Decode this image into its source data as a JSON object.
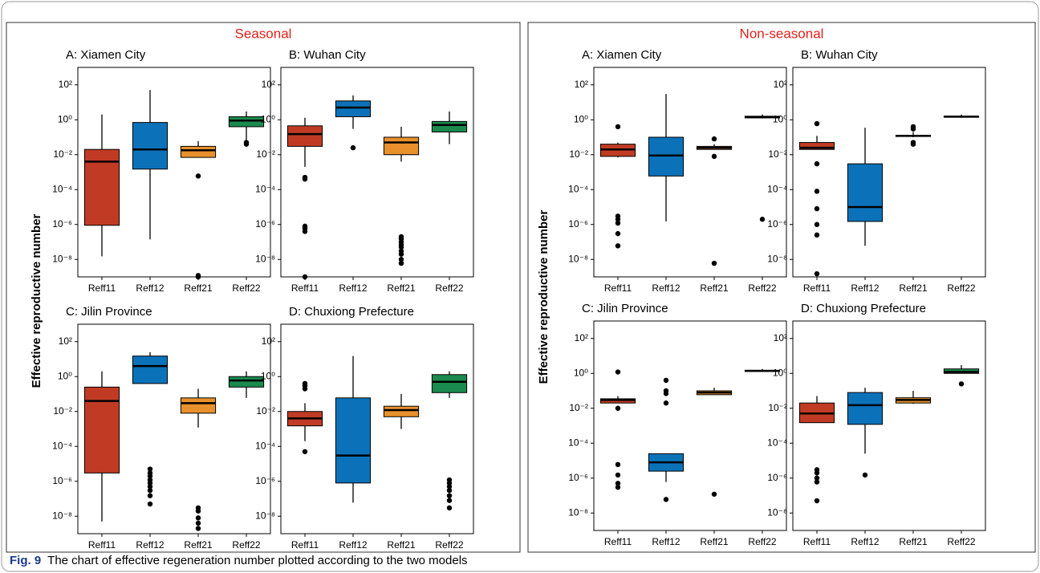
{
  "figure": {
    "groups": [
      {
        "title": "Seasonal",
        "ylabel": "Effective reproductive number"
      },
      {
        "title": "Non-seasonal",
        "ylabel": "Effective reproductive number"
      }
    ],
    "caption_label": "Fig. 9",
    "caption": "The chart of effective regeneration number plotted according to the two models"
  },
  "chart_data": [
    {
      "type": "box",
      "title": "A: Xiamen City",
      "log": true,
      "ylim": [
        1e-09,
        1000
      ],
      "yticks": [
        {
          "value": 1e-08,
          "label": "10⁻⁸"
        },
        {
          "value": 1e-06,
          "label": "10⁻⁶"
        },
        {
          "value": 0.0001,
          "label": "10⁻⁴"
        },
        {
          "value": 0.01,
          "label": "10⁻²"
        },
        {
          "value": 1,
          "label": "10⁰"
        },
        {
          "value": 100,
          "label": "10²"
        }
      ],
      "categories": [
        "Reff11",
        "Reff12",
        "Reff21",
        "Reff22"
      ],
      "colors": [
        "#c13b24",
        "#0b72b9",
        "#e8912c",
        "#1b8a4f"
      ],
      "boxes": [
        {
          "whislo": 1.5e-08,
          "q1": 9e-07,
          "med": 0.004,
          "q3": 0.02,
          "whishi": 2,
          "fliers": []
        },
        {
          "whislo": 1.4e-07,
          "q1": 0.0015,
          "med": 0.02,
          "q3": 0.7,
          "whishi": 50,
          "fliers": []
        },
        {
          "whislo": 0.007,
          "q1": 0.007,
          "med": 0.018,
          "q3": 0.03,
          "whishi": 0.06,
          "fliers": [
            0.0006,
            1.2e-09,
            1e-09
          ]
        },
        {
          "whislo": 0.06,
          "q1": 0.4,
          "med": 0.9,
          "q3": 1.5,
          "whishi": 3,
          "fliers": [
            0.05,
            0.04
          ]
        }
      ]
    },
    {
      "type": "box",
      "title": "B: Wuhan City",
      "log": true,
      "ylim": [
        1e-09,
        1000
      ],
      "yticks": [
        {
          "value": 1e-08,
          "label": "10⁻⁸"
        },
        {
          "value": 1e-06,
          "label": "10⁻⁶"
        },
        {
          "value": 0.0001,
          "label": "10⁻⁴"
        },
        {
          "value": 0.01,
          "label": "10⁻²"
        },
        {
          "value": 1,
          "label": "10⁰"
        },
        {
          "value": 100,
          "label": "10²"
        }
      ],
      "categories": [
        "Reff11",
        "Reff12",
        "Reff21",
        "Reff22"
      ],
      "colors": [
        "#c13b24",
        "#0b72b9",
        "#e8912c",
        "#1b8a4f"
      ],
      "boxes": [
        {
          "whislo": 0.002,
          "q1": 0.03,
          "med": 0.15,
          "q3": 0.45,
          "whishi": 1.3,
          "fliers": [
            0.0005,
            0.0004,
            8e-07,
            6e-07,
            4e-07,
            1e-09
          ]
        },
        {
          "whislo": 0.3,
          "q1": 1.5,
          "med": 5,
          "q3": 12,
          "whishi": 25,
          "fliers": [
            0.025
          ]
        },
        {
          "whislo": 0.004,
          "q1": 0.01,
          "med": 0.05,
          "q3": 0.1,
          "whishi": 0.4,
          "fliers": [
            2e-07,
            1.5e-07,
            1e-07,
            7e-08,
            5e-08,
            3e-08,
            2e-08,
            1e-08,
            6e-09
          ]
        },
        {
          "whislo": 0.04,
          "q1": 0.2,
          "med": 0.5,
          "q3": 0.8,
          "whishi": 3,
          "fliers": []
        }
      ]
    },
    {
      "type": "box",
      "title": "C: Jilin Province",
      "log": true,
      "ylim": [
        1e-09,
        1000
      ],
      "yticks": [
        {
          "value": 1e-08,
          "label": "10⁻⁸"
        },
        {
          "value": 1e-06,
          "label": "10⁻⁶"
        },
        {
          "value": 0.0001,
          "label": "10⁻⁴"
        },
        {
          "value": 0.01,
          "label": "10⁻²"
        },
        {
          "value": 1,
          "label": "10⁰"
        },
        {
          "value": 100,
          "label": "10²"
        }
      ],
      "categories": [
        "Reff11",
        "Reff12",
        "Reff21",
        "Reff22"
      ],
      "colors": [
        "#c13b24",
        "#0b72b9",
        "#e8912c",
        "#1b8a4f"
      ],
      "boxes": [
        {
          "whislo": 5e-09,
          "q1": 3e-06,
          "med": 0.04,
          "q3": 0.25,
          "whishi": 2,
          "fliers": []
        },
        {
          "whislo": 0.4,
          "q1": 0.4,
          "med": 4,
          "q3": 15,
          "whishi": 25,
          "fliers": [
            5e-06,
            3e-06,
            2e-06,
            1.2e-06,
            8e-07,
            5e-07,
            3e-07,
            1.5e-07,
            5e-08
          ]
        },
        {
          "whislo": 0.0012,
          "q1": 0.008,
          "med": 0.03,
          "q3": 0.06,
          "whishi": 0.2,
          "fliers": [
            3e-08,
            2e-08,
            8e-09,
            4e-09,
            2e-09
          ]
        },
        {
          "whislo": 0.06,
          "q1": 0.25,
          "med": 0.6,
          "q3": 1,
          "whishi": 2,
          "fliers": []
        }
      ]
    },
    {
      "type": "box",
      "title": "D: Chuxiong Prefecture",
      "log": true,
      "ylim": [
        1e-09,
        1000
      ],
      "yticks": [
        {
          "value": 1e-08,
          "label": "10⁻⁸"
        },
        {
          "value": 1e-06,
          "label": "10⁻⁶"
        },
        {
          "value": 0.0001,
          "label": "10⁻⁴"
        },
        {
          "value": 0.01,
          "label": "10⁻²"
        },
        {
          "value": 1,
          "label": "10⁰"
        },
        {
          "value": 100,
          "label": "10²"
        }
      ],
      "categories": [
        "Reff11",
        "Reff12",
        "Reff21",
        "Reff22"
      ],
      "colors": [
        "#c13b24",
        "#0b72b9",
        "#e8912c",
        "#1b8a4f"
      ],
      "boxes": [
        {
          "whislo": 0.0002,
          "q1": 0.0015,
          "med": 0.004,
          "q3": 0.01,
          "whishi": 0.03,
          "fliers": [
            0.4,
            0.3,
            0.2,
            5e-05
          ]
        },
        {
          "whislo": 6e-08,
          "q1": 8e-07,
          "med": 3e-05,
          "q3": 0.06,
          "whishi": 15,
          "fliers": []
        },
        {
          "whislo": 0.001,
          "q1": 0.005,
          "med": 0.012,
          "q3": 0.02,
          "whishi": 0.1,
          "fliers": []
        },
        {
          "whislo": 0.06,
          "q1": 0.12,
          "med": 0.5,
          "q3": 1.3,
          "whishi": 2,
          "fliers": [
            1.2e-06,
            8e-07,
            5e-07,
            3e-07,
            1.5e-07,
            8e-08,
            3e-08
          ]
        }
      ]
    },
    {
      "type": "box",
      "title": "A: Xiamen City",
      "log": true,
      "ylim": [
        1e-09,
        1000
      ],
      "yticks": [
        {
          "value": 1e-08,
          "label": "10⁻⁸"
        },
        {
          "value": 1e-06,
          "label": "10⁻⁶"
        },
        {
          "value": 0.0001,
          "label": "10⁻⁴"
        },
        {
          "value": 0.01,
          "label": "10⁻²"
        },
        {
          "value": 1,
          "label": "10⁰"
        },
        {
          "value": 100,
          "label": "10²"
        }
      ],
      "categories": [
        "Reff11",
        "Reff12",
        "Reff21",
        "Reff22"
      ],
      "colors": [
        "#c13b24",
        "#0b72b9",
        "#e8912c",
        "#1b8a4f"
      ],
      "boxes": [
        {
          "whislo": 0.007,
          "q1": 0.008,
          "med": 0.02,
          "q3": 0.04,
          "whishi": 0.05,
          "fliers": [
            0.4,
            3e-06,
            2e-06,
            1.2e-06,
            3e-07,
            6e-08
          ]
        },
        {
          "whislo": 1.5e-06,
          "q1": 0.0006,
          "med": 0.009,
          "q3": 0.1,
          "whishi": 30,
          "fliers": []
        },
        {
          "whislo": 0.02,
          "q1": 0.02,
          "med": 0.025,
          "q3": 0.03,
          "whishi": 0.04,
          "fliers": [
            0.08,
            0.008,
            6e-09
          ]
        },
        {
          "whislo": 1.2,
          "q1": 1.3,
          "med": 1.4,
          "q3": 1.6,
          "whishi": 2,
          "fliers": [
            2e-06
          ]
        }
      ]
    },
    {
      "type": "box",
      "title": "B: Wuhan City",
      "log": true,
      "ylim": [
        1e-09,
        1000
      ],
      "yticks": [
        {
          "value": 1e-08,
          "label": "10⁻⁸"
        },
        {
          "value": 1e-06,
          "label": "10⁻⁶"
        },
        {
          "value": 0.0001,
          "label": "10⁻⁴"
        },
        {
          "value": 0.01,
          "label": "10⁻²"
        },
        {
          "value": 1,
          "label": "10⁰"
        },
        {
          "value": 100,
          "label": "10²"
        }
      ],
      "categories": [
        "Reff11",
        "Reff12",
        "Reff21",
        "Reff22"
      ],
      "colors": [
        "#c13b24",
        "#0b72b9",
        "#e8912c",
        "#1b8a4f"
      ],
      "boxes": [
        {
          "whislo": 0.02,
          "q1": 0.02,
          "med": 0.025,
          "q3": 0.05,
          "whishi": 0.12,
          "fliers": [
            0.6,
            0.003,
            8e-05,
            8e-06,
            1e-06,
            2.5e-07,
            1.5e-09
          ]
        },
        {
          "whislo": 6e-08,
          "q1": 1.5e-06,
          "med": 1e-05,
          "q3": 0.003,
          "whishi": 0.35,
          "fliers": []
        },
        {
          "whislo": 0.1,
          "q1": 0.11,
          "med": 0.12,
          "q3": 0.13,
          "whishi": 0.2,
          "fliers": [
            0.4,
            0.3,
            0.05,
            0.04
          ]
        },
        {
          "whislo": 1.3,
          "q1": 1.4,
          "med": 1.5,
          "q3": 1.6,
          "whishi": 2,
          "fliers": []
        }
      ]
    },
    {
      "type": "box",
      "title": "C: Jilin Province",
      "log": true,
      "ylim": [
        1e-09,
        1000
      ],
      "yticks": [
        {
          "value": 1e-08,
          "label": "10⁻⁸"
        },
        {
          "value": 1e-06,
          "label": "10⁻⁶"
        },
        {
          "value": 0.0001,
          "label": "10⁻⁴"
        },
        {
          "value": 0.01,
          "label": "10⁻²"
        },
        {
          "value": 1,
          "label": "10⁰"
        },
        {
          "value": 100,
          "label": "10²"
        }
      ],
      "categories": [
        "Reff11",
        "Reff12",
        "Reff21",
        "Reff22"
      ],
      "colors": [
        "#c13b24",
        "#0b72b9",
        "#e8912c",
        "#1b8a4f"
      ],
      "boxes": [
        {
          "whislo": 0.02,
          "q1": 0.02,
          "med": 0.03,
          "q3": 0.035,
          "whishi": 0.05,
          "fliers": [
            1.2,
            0.01,
            6e-06,
            1.5e-06,
            5e-07,
            3e-07
          ]
        },
        {
          "whislo": 6e-07,
          "q1": 2.5e-06,
          "med": 8e-06,
          "q3": 2.5e-05,
          "whishi": 2.5e-05,
          "fliers": [
            0.4,
            0.1,
            0.07,
            0.02,
            6e-08
          ]
        },
        {
          "whislo": 0.06,
          "q1": 0.06,
          "med": 0.08,
          "q3": 0.1,
          "whishi": 0.15,
          "fliers": [
            1.2e-07
          ]
        },
        {
          "whislo": 1.2,
          "q1": 1.3,
          "med": 1.4,
          "q3": 1.5,
          "whishi": 1.8,
          "fliers": []
        }
      ]
    },
    {
      "type": "box",
      "title": "D: Chuxiong Prefecture",
      "log": true,
      "ylim": [
        1e-09,
        1000
      ],
      "yticks": [
        {
          "value": 1e-08,
          "label": "10⁻⁸"
        },
        {
          "value": 1e-06,
          "label": "10⁻⁶"
        },
        {
          "value": 0.0001,
          "label": "10⁻⁴"
        },
        {
          "value": 0.01,
          "label": "10⁻²"
        },
        {
          "value": 1,
          "label": "10⁰"
        },
        {
          "value": 100,
          "label": "10²"
        }
      ],
      "categories": [
        "Reff11",
        "Reff12",
        "Reff21",
        "Reff22"
      ],
      "colors": [
        "#c13b24",
        "#0b72b9",
        "#e8912c",
        "#1b8a4f"
      ],
      "boxes": [
        {
          "whislo": 0.0015,
          "q1": 0.0015,
          "med": 0.005,
          "q3": 0.02,
          "whishi": 0.05,
          "fliers": [
            3e-06,
            2e-06,
            1e-06,
            6e-07,
            5e-08
          ]
        },
        {
          "whislo": 2.5e-05,
          "q1": 0.0012,
          "med": 0.015,
          "q3": 0.08,
          "whishi": 0.15,
          "fliers": [
            1.5e-06
          ]
        },
        {
          "whislo": 0.018,
          "q1": 0.02,
          "med": 0.03,
          "q3": 0.04,
          "whishi": 0.1,
          "fliers": []
        },
        {
          "whislo": 1,
          "q1": 1,
          "med": 1.2,
          "q3": 1.8,
          "whishi": 3,
          "fliers": [
            0.25
          ]
        }
      ]
    }
  ]
}
